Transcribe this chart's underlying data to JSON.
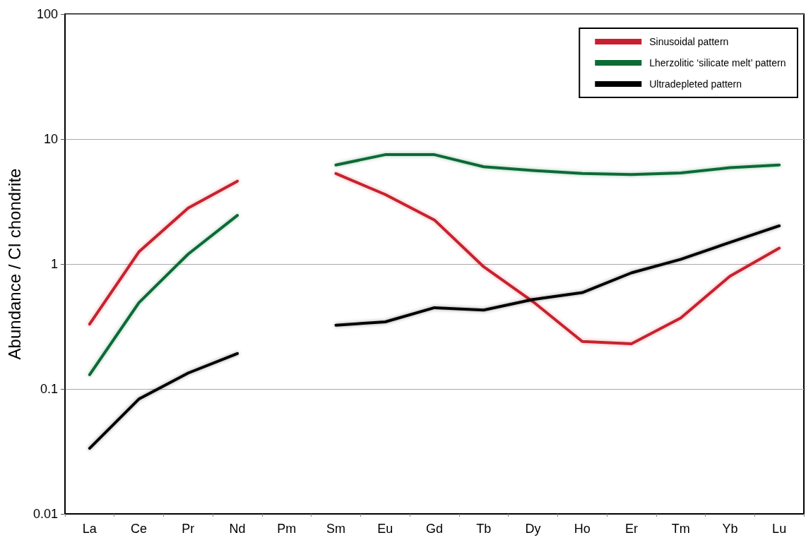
{
  "chart_data": {
    "type": "line",
    "ylabel": "Abundance / CI chondrite",
    "categories": [
      "La",
      "Ce",
      "Pr",
      "Nd",
      "Pm",
      "Sm",
      "Eu",
      "Gd",
      "Tb",
      "Dy",
      "Ho",
      "Er",
      "Tm",
      "Yb",
      "Lu"
    ],
    "series": [
      {
        "name": "Sinusoidal pattern",
        "color": "#c8202f",
        "values": [
          0.33,
          1.25,
          2.8,
          4.6,
          null,
          5.3,
          3.6,
          2.25,
          0.95,
          0.5,
          0.24,
          0.23,
          0.37,
          0.8,
          1.34
        ]
      },
      {
        "name": "Lherzolitic ‘silicate melt’ pattern",
        "color": "#0b6b35",
        "values": [
          0.13,
          0.49,
          1.2,
          2.45,
          null,
          6.2,
          7.5,
          7.5,
          6.0,
          5.6,
          5.3,
          5.2,
          5.35,
          5.9,
          6.2
        ]
      },
      {
        "name": "Ultradepleted pattern",
        "color": "#000000",
        "values": [
          0.0335,
          0.083,
          0.134,
          0.192,
          null,
          0.324,
          0.344,
          0.447,
          0.428,
          0.52,
          0.59,
          0.85,
          1.09,
          1.49,
          2.02
        ]
      }
    ],
    "ylim": [
      0.01,
      100
    ],
    "yticks": [
      0.01,
      0.1,
      1,
      10,
      100
    ],
    "log": true,
    "grid": "y",
    "legend": "top right",
    "marker": "none",
    "line_style": "solid"
  }
}
